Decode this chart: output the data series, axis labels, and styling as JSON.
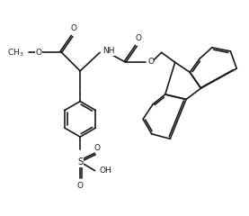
{
  "background_color": "#ffffff",
  "line_color": "#1a1a1a",
  "line_width": 1.2,
  "font_size": 6.5,
  "figsize": [
    2.77,
    2.4
  ],
  "dpi": 100,
  "xlim": [
    0,
    10
  ],
  "ylim": [
    0,
    8.6
  ]
}
